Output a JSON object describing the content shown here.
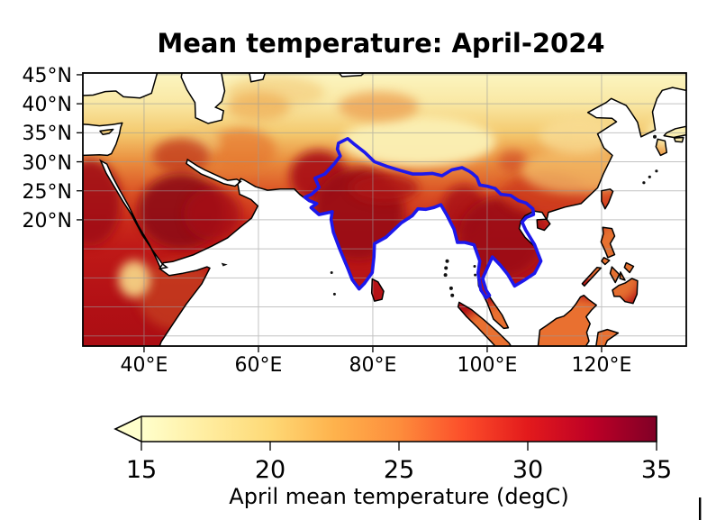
{
  "title": "Mean temperature: April-2024",
  "axes": {
    "y_tick_labels": [
      "45°N",
      "40°N",
      "35°N",
      "30°N",
      "25°N",
      "20°N"
    ],
    "x_tick_labels": [
      "40°E",
      "60°E",
      "80°E",
      "100°E",
      "120°E"
    ]
  },
  "map": {
    "sea_color": "#ffffff",
    "coastline_color": "#000000",
    "gridline_color": "#9a9a9a",
    "region_outline_color": "#1d18ec"
  },
  "colorbar": {
    "tick_labels": [
      "15",
      "20",
      "25",
      "30",
      "35"
    ],
    "label": "April mean temperature (degC)",
    "vmin": 15,
    "vmax": 35,
    "extend": "min",
    "colormap": "YlOrRd",
    "colormap_stops": [
      "#ffffcc",
      "#ffeda0",
      "#fed976",
      "#feb24c",
      "#fd8d3c",
      "#fc4e2a",
      "#e31a1c",
      "#bd0026",
      "#800026"
    ]
  },
  "chart_data": {
    "type": "heatmap",
    "subtype": "geographic-temperature-map",
    "title": "Mean temperature: April-2024",
    "projection": "PlateCarree",
    "extent": {
      "lon_deg_east": [
        29.5,
        135.0
      ],
      "lat_deg_north": [
        -2.0,
        45.5
      ]
    },
    "x_ticks_deg_east": [
      40,
      60,
      80,
      100,
      120
    ],
    "y_ticks_deg_north": [
      45,
      40,
      35,
      30,
      25,
      20
    ],
    "grid": true,
    "gridline_spacing": {
      "lon_deg": 20,
      "lat_deg": 5
    },
    "colorbar": {
      "label": "April mean temperature (degC)",
      "ticks": [
        15,
        20,
        25,
        30,
        35
      ],
      "vmin": 15,
      "vmax": 35,
      "extend": "min",
      "colormap": "YlOrRd"
    },
    "highlighted_region": {
      "name": "South Asia / Indian subcontinent and Indochina outline",
      "outline_color": "#1d18ec"
    },
    "approx_regional_values_degC": [
      {
        "region": "Tibetan Plateau",
        "value": 14
      },
      {
        "region": "Northern China / Manchuria / Korea / Japan",
        "value": 16
      },
      {
        "region": "Tarim Basin",
        "value": 20
      },
      {
        "region": "Central Asia steppe (~42-45N)",
        "value": 17
      },
      {
        "region": "Anatolia / Turkey",
        "value": 16
      },
      {
        "region": "Iranian Plateau",
        "value": 24
      },
      {
        "region": "Mesopotamia",
        "value": 29
      },
      {
        "region": "Arabian Peninsula interior",
        "value": 34
      },
      {
        "region": "Egypt / Sudan (NE Africa)",
        "value": 32
      },
      {
        "region": "Ethiopian Highlands",
        "value": 21
      },
      {
        "region": "Horn of Africa lowlands",
        "value": 29
      },
      {
        "region": "Indo-Gangetic plain (N India)",
        "value": 34
      },
      {
        "region": "Central and South India",
        "value": 34
      },
      {
        "region": "Indochina (Myanmar/Thailand/Laos/Cambodia/Vietnam)",
        "value": 34
      },
      {
        "region": "South China (~22-26N)",
        "value": 27
      },
      {
        "region": "Southeast China (~27-33N)",
        "value": 21
      },
      {
        "region": "Maritime Southeast Asia (Sumatra/Borneo/Philippines)",
        "value": 28
      },
      {
        "region": "Sri Lanka",
        "value": 29
      }
    ]
  }
}
